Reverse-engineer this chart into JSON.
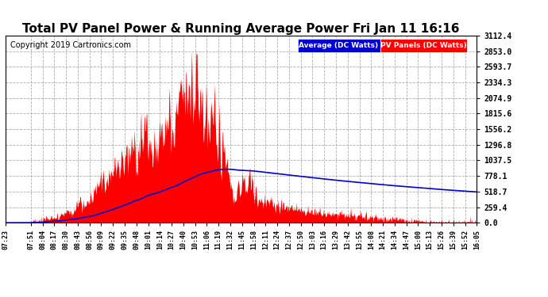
{
  "title": "Total PV Panel Power & Running Average Power Fri Jan 11 16:16",
  "copyright": "Copyright 2019 Cartronics.com",
  "ymax": 3112.4,
  "ymin": 0.0,
  "ytick_values": [
    3112.4,
    2853.0,
    2593.7,
    2334.3,
    2074.9,
    1815.6,
    1556.2,
    1296.8,
    1037.5,
    778.1,
    518.7,
    259.4,
    0.0
  ],
  "pv_color": "#ff0000",
  "avg_color": "#0000cc",
  "background_color": "#ffffff",
  "grid_color": "#999999",
  "legend_avg_bg": "#0000cc",
  "legend_pv_bg": "#ff0000",
  "legend_avg_text": "Average (DC Watts)",
  "legend_pv_text": "PV Panels (DC Watts)",
  "title_fontsize": 11,
  "copyright_fontsize": 7,
  "xtick_labels": [
    "07:23",
    "07:51",
    "08:04",
    "08:17",
    "08:30",
    "08:43",
    "08:56",
    "09:09",
    "09:22",
    "09:35",
    "09:48",
    "10:01",
    "10:14",
    "10:27",
    "10:40",
    "10:53",
    "11:06",
    "11:19",
    "11:32",
    "11:45",
    "11:58",
    "12:11",
    "12:24",
    "12:37",
    "12:50",
    "13:03",
    "13:16",
    "13:29",
    "13:42",
    "13:55",
    "14:08",
    "14:21",
    "14:34",
    "14:47",
    "15:00",
    "15:13",
    "15:26",
    "15:39",
    "15:52",
    "16:05"
  ]
}
